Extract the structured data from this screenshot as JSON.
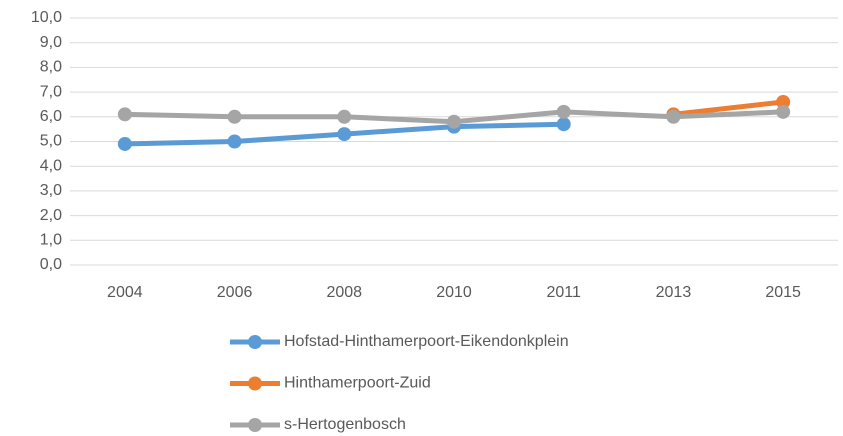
{
  "chart_data": {
    "type": "line",
    "categories": [
      "2004",
      "2006",
      "2008",
      "2010",
      "2011",
      "2013",
      "2015"
    ],
    "series": [
      {
        "name": "Hofstad-Hinthamerpoort-Eikendonkplein",
        "color": "#5b9bd5",
        "values": [
          4.9,
          5.0,
          5.3,
          5.6,
          5.7,
          null,
          null
        ]
      },
      {
        "name": "Hinthamerpoort-Zuid",
        "color": "#ed7d31",
        "values": [
          null,
          null,
          null,
          null,
          null,
          6.1,
          6.6
        ]
      },
      {
        "name": "s-Hertogenbosch",
        "color": "#a5a5a5",
        "values": [
          6.1,
          6.0,
          6.0,
          5.8,
          6.2,
          6.0,
          6.2
        ]
      }
    ],
    "ylim": [
      0,
      10
    ],
    "yticks": [
      {
        "value": 0,
        "label": "0,0"
      },
      {
        "value": 1,
        "label": "1,0"
      },
      {
        "value": 2,
        "label": "2,0"
      },
      {
        "value": 3,
        "label": "3,0"
      },
      {
        "value": 4,
        "label": "4,0"
      },
      {
        "value": 5,
        "label": "5,0"
      },
      {
        "value": 6,
        "label": "6,0"
      },
      {
        "value": 7,
        "label": "7,0"
      },
      {
        "value": 8,
        "label": "8,0"
      },
      {
        "value": 9,
        "label": "9,0"
      },
      {
        "value": 10,
        "label": "10,0"
      }
    ],
    "grid": true,
    "legend": "bottom"
  }
}
